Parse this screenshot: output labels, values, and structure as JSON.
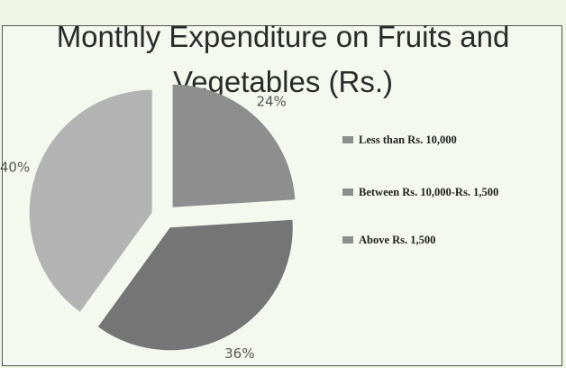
{
  "chart_data": {
    "type": "pie",
    "title": "Monthly Expenditure on Fruits and Vegetables (Rs.)",
    "categories": [
      "Less than Rs. 10,000",
      "Between Rs. 10,000-Rs. 1,500",
      "Above Rs. 1,500"
    ],
    "values": [
      24,
      36,
      40
    ],
    "value_labels": [
      "24%",
      "36%",
      "40%"
    ],
    "colors": [
      "#8e8e8e",
      "#757575",
      "#b3b3b3"
    ],
    "legend_color": "#8e8e8e",
    "legend": "right"
  }
}
